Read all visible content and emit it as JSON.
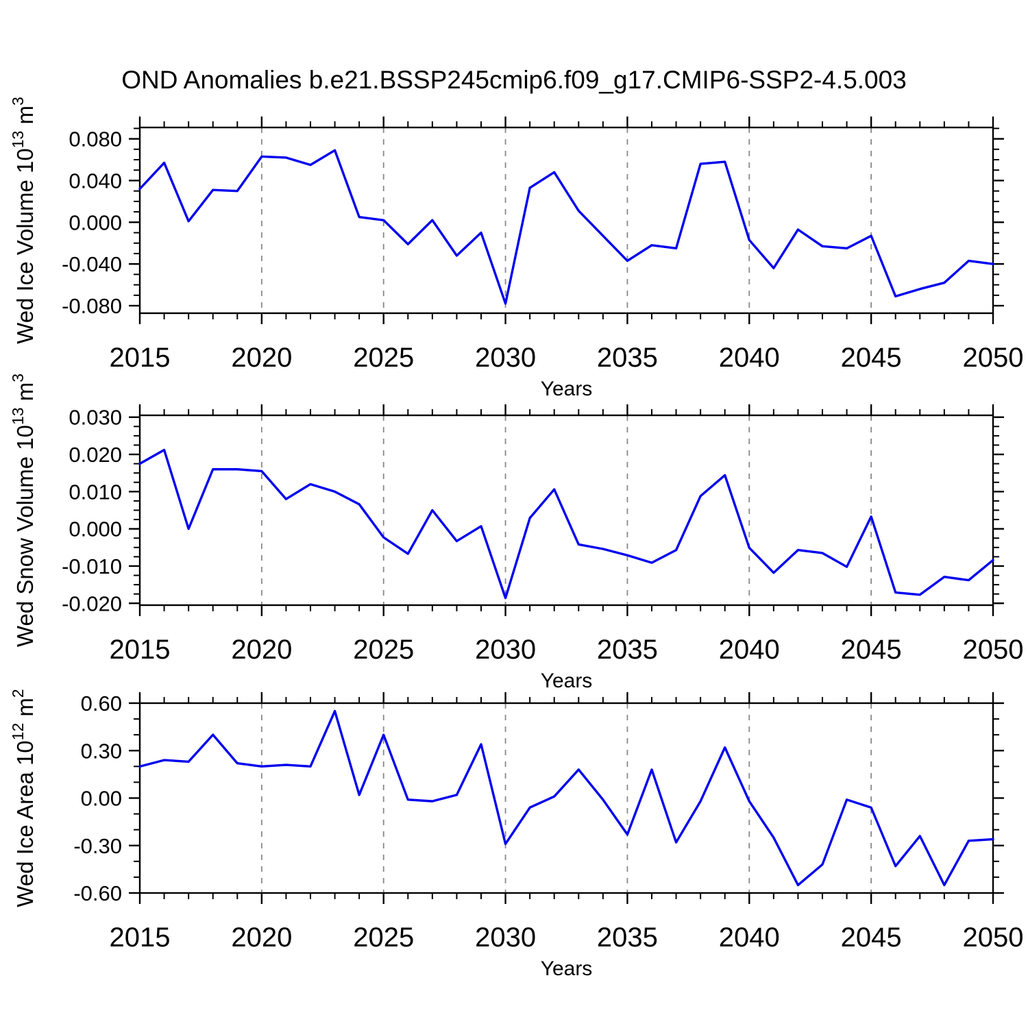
{
  "title": "OND Anomalies b.e21.BSSP245cmip6.f09_g17.CMIP6-SSP2-4.5.003",
  "xlabel": "Years",
  "colors": {
    "line": "#0000ee",
    "grid": "#888888",
    "axis": "#000000",
    "text": "#000000",
    "background": "#ffffff"
  },
  "years": [
    2015,
    2016,
    2017,
    2018,
    2019,
    2020,
    2021,
    2022,
    2023,
    2024,
    2025,
    2026,
    2027,
    2028,
    2029,
    2030,
    2031,
    2032,
    2033,
    2034,
    2035,
    2036,
    2037,
    2038,
    2039,
    2040,
    2041,
    2042,
    2043,
    2044,
    2045,
    2046,
    2047,
    2048,
    2049,
    2050
  ],
  "x_major_ticks": [
    2015,
    2020,
    2025,
    2030,
    2035,
    2040,
    2045,
    2050
  ],
  "grid_years": [
    2020,
    2025,
    2030,
    2035,
    2040,
    2045
  ],
  "chart_data": [
    {
      "name": "wed-ice-volume",
      "type": "line",
      "title": "",
      "ylabel": "Wed Ice Volume 10^13 m^3",
      "ylabel_segments": [
        {
          "t": "Wed Ice Volume 10"
        },
        {
          "t": "13",
          "sup": true
        },
        {
          "t": " m"
        },
        {
          "t": "3",
          "sup": true
        }
      ],
      "xlabel": "Years",
      "ylim": [
        -0.0872,
        0.0909
      ],
      "yticks": [
        {
          "v": 0.08,
          "label": "0.080"
        },
        {
          "v": 0.04,
          "label": "0.040"
        },
        {
          "v": 0.0,
          "label": "0.000"
        },
        {
          "v": -0.04,
          "label": "-0.040"
        },
        {
          "v": -0.08,
          "label": "-0.080"
        }
      ],
      "ytick_minor_step": 0.01,
      "values": [
        0.032,
        0.057,
        0.001,
        0.031,
        0.03,
        0.063,
        0.062,
        0.055,
        0.069,
        0.005,
        0.002,
        -0.021,
        0.002,
        -0.032,
        -0.01,
        -0.078,
        0.033,
        0.048,
        0.011,
        -0.013,
        -0.037,
        -0.022,
        -0.025,
        0.056,
        0.058,
        -0.017,
        -0.044,
        -0.007,
        -0.023,
        -0.025,
        -0.013,
        -0.071,
        -0.064,
        -0.058,
        -0.037,
        -0.04
      ]
    },
    {
      "name": "wed-snow-volume",
      "type": "line",
      "title": "",
      "ylabel": "Wed Snow Volume 10^13 m^3",
      "ylabel_segments": [
        {
          "t": "Wed Snow Volume 10"
        },
        {
          "t": "13",
          "sup": true
        },
        {
          "t": " m"
        },
        {
          "t": "3",
          "sup": true
        }
      ],
      "xlabel": "Years",
      "ylim": [
        -0.0205,
        0.0305
      ],
      "yticks": [
        {
          "v": 0.03,
          "label": "0.030"
        },
        {
          "v": 0.02,
          "label": "0.020"
        },
        {
          "v": 0.01,
          "label": "0.010"
        },
        {
          "v": 0.0,
          "label": "0.000"
        },
        {
          "v": -0.01,
          "label": "-0.010"
        },
        {
          "v": -0.02,
          "label": "-0.020"
        }
      ],
      "ytick_minor_step": 0.0025,
      "values": [
        0.0175,
        0.0212,
        0.0,
        0.016,
        0.016,
        0.0155,
        0.008,
        0.012,
        0.01,
        0.0066,
        -0.0023,
        -0.0067,
        0.005,
        -0.0033,
        0.0007,
        -0.0186,
        0.0029,
        0.0106,
        -0.0042,
        -0.0054,
        -0.0071,
        -0.0091,
        -0.0057,
        0.0088,
        0.0144,
        -0.0051,
        -0.0118,
        -0.0057,
        -0.0065,
        -0.0102,
        0.0033,
        -0.0171,
        -0.0177,
        -0.0129,
        -0.0138,
        -0.0084
      ]
    },
    {
      "name": "wed-ice-area",
      "type": "line",
      "title": "",
      "ylabel": "Wed Ice Area 10^12 m^2",
      "ylabel_segments": [
        {
          "t": "Wed Ice Area 10"
        },
        {
          "t": "12",
          "sup": true
        },
        {
          "t": " m"
        },
        {
          "t": "2",
          "sup": true
        }
      ],
      "xlabel": "Years",
      "ylim": [
        -0.6,
        0.6
      ],
      "yticks": [
        {
          "v": 0.6,
          "label": "0.60"
        },
        {
          "v": 0.3,
          "label": "0.30"
        },
        {
          "v": 0.0,
          "label": "0.00"
        },
        {
          "v": -0.3,
          "label": "-0.30"
        },
        {
          "v": -0.6,
          "label": "-0.60"
        }
      ],
      "ytick_minor_step": 0.1,
      "values": [
        0.2,
        0.24,
        0.23,
        0.4,
        0.22,
        0.2,
        0.21,
        0.2,
        0.55,
        0.02,
        0.4,
        -0.01,
        -0.02,
        0.02,
        0.34,
        -0.29,
        -0.06,
        0.01,
        0.18,
        -0.01,
        -0.23,
        0.18,
        -0.28,
        -0.02,
        0.32,
        -0.02,
        -0.25,
        -0.55,
        -0.42,
        -0.01,
        -0.06,
        -0.43,
        -0.24,
        -0.55,
        -0.27,
        -0.26
      ]
    }
  ]
}
